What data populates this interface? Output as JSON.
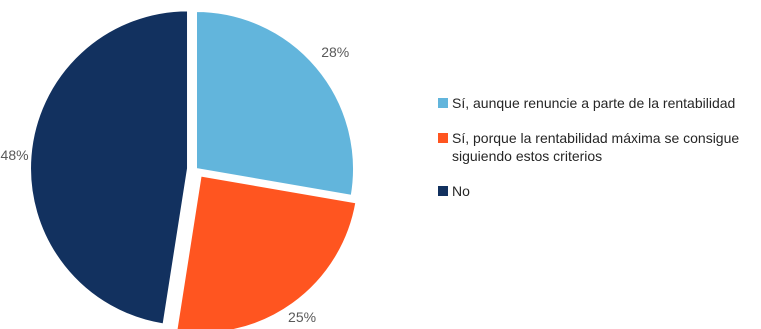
{
  "chart_data": {
    "type": "pie",
    "slices": [
      {
        "label": "Sí, aunque renuncie a parte de la rentabilidad",
        "value": 28,
        "value_label": "28%",
        "color": "#62B5DC",
        "exploded": false
      },
      {
        "label": "Sí, porque la rentabilidad máxima se consigue siguiendo estos criterios",
        "value": 25,
        "value_label": "25%",
        "color": "#FF5520",
        "exploded": true
      },
      {
        "label": "No",
        "value": 48,
        "value_label": "48%",
        "color": "#12315F",
        "exploded": true
      }
    ],
    "start_angle_deg": 0,
    "direction": "clockwise",
    "legend_position": "right",
    "title": ""
  }
}
